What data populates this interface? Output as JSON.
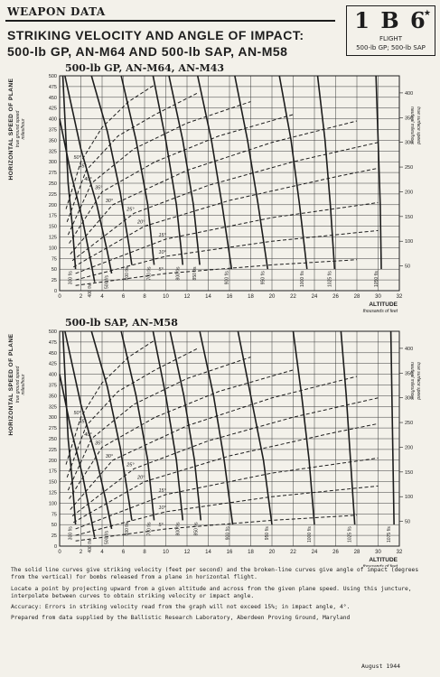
{
  "header": {
    "section_tag": "WEAPON DATA",
    "title_line1": "STRIKING VELOCITY AND ANGLE OF IMPACT:",
    "title_line2": "500-lb GP, AN-M64 AND 500-lb SAP, AN-M58"
  },
  "badge": {
    "code": "1 B 6",
    "star": "★",
    "line1": "FLIGHT",
    "line2": "500-lb GP; 500-lb SAP"
  },
  "colors": {
    "ink": "#1d1d1d",
    "paper": "#f3f1ea",
    "grid": "#3a3a3a"
  },
  "chart_data": [
    {
      "type": "line",
      "title": "500-lb GP, AN-M64, AN-M43",
      "xlabel": "ALTITUDE, thousands of feet",
      "ylabel_left": "HORIZONTAL SPEED OF PLANE, true ground speed, miles/hour",
      "ylabel_right": "true surface speed, nautical miles/hour",
      "xlim": [
        0,
        32
      ],
      "ylim": [
        0,
        500
      ],
      "right_ylim": [
        0,
        434.5
      ],
      "x_ticks": [
        0,
        2,
        4,
        6,
        8,
        10,
        12,
        14,
        16,
        18,
        20,
        22,
        24,
        26,
        28,
        30,
        32
      ],
      "y_ticks": [
        0,
        25,
        50,
        75,
        100,
        125,
        150,
        175,
        200,
        225,
        250,
        275,
        300,
        325,
        350,
        375,
        400,
        425,
        450,
        475,
        500
      ],
      "right_ticks": [
        50,
        100,
        150,
        200,
        250,
        300,
        350,
        400
      ],
      "grid": true,
      "velocity_series": [
        {
          "name": "300 f/s",
          "x": [
            0.3,
            0.8,
            1.2,
            1.5
          ],
          "y": [
            500,
            250,
            150,
            50
          ]
        },
        {
          "name": "400 f/s",
          "x": [
            0,
            1,
            2.2,
            3,
            3.3
          ],
          "y": [
            400,
            280,
            160,
            60,
            20
          ]
        },
        {
          "name": "500 f/s",
          "x": [
            0.5,
            2,
            3.5,
            4.5,
            4.9
          ],
          "y": [
            500,
            330,
            200,
            90,
            40
          ]
        },
        {
          "name": "600 f/s",
          "x": [
            3,
            4.5,
            5.7,
            6.5,
            6.8
          ],
          "y": [
            500,
            370,
            230,
            110,
            60
          ]
        },
        {
          "name": "700 f/s",
          "x": [
            5.8,
            7.2,
            8.3,
            8.9
          ],
          "y": [
            500,
            350,
            200,
            60
          ]
        },
        {
          "name": "800 f/s",
          "x": [
            8.8,
            10,
            11,
            11.6
          ],
          "y": [
            500,
            350,
            200,
            60
          ]
        },
        {
          "name": "850 f/s",
          "x": [
            10.3,
            11.6,
            12.6,
            13.2
          ],
          "y": [
            500,
            350,
            200,
            60
          ]
        },
        {
          "name": "900 f/s",
          "x": [
            13,
            14.3,
            15.3,
            16.2
          ],
          "y": [
            500,
            350,
            200,
            50
          ]
        },
        {
          "name": "950 f/s",
          "x": [
            16.5,
            17.7,
            18.7,
            19.6
          ],
          "y": [
            500,
            350,
            200,
            50
          ]
        },
        {
          "name": "1000 f/s",
          "x": [
            20.7,
            21.8,
            22.6,
            23.3
          ],
          "y": [
            500,
            350,
            200,
            50
          ]
        },
        {
          "name": "1025 f/s",
          "x": [
            24.3,
            25,
            25.5,
            25.9
          ],
          "y": [
            500,
            350,
            200,
            50
          ]
        },
        {
          "name": "1050 f/s",
          "x": [
            29.8,
            30,
            30.2,
            30.3
          ],
          "y": [
            500,
            350,
            200,
            50
          ]
        }
      ],
      "angle_series": [
        {
          "name": "5°",
          "x": [
            1.5,
            10,
            20,
            28
          ],
          "y": [
            12,
            40,
            60,
            72
          ]
        },
        {
          "name": "10°",
          "x": [
            1.5,
            10,
            20,
            30
          ],
          "y": [
            25,
            80,
            115,
            140
          ]
        },
        {
          "name": "15°",
          "x": [
            1.5,
            10,
            20,
            30
          ],
          "y": [
            40,
            120,
            170,
            205
          ]
        },
        {
          "name": "20°",
          "x": [
            1.3,
            8,
            16,
            26,
            30
          ],
          "y": [
            55,
            150,
            210,
            265,
            285
          ]
        },
        {
          "name": "25°",
          "x": [
            1.2,
            7,
            14,
            22,
            30
          ],
          "y": [
            70,
            180,
            245,
            300,
            345
          ]
        },
        {
          "name": "30°",
          "x": [
            1,
            5,
            12,
            20,
            28
          ],
          "y": [
            85,
            200,
            280,
            345,
            395
          ]
        },
        {
          "name": "35°",
          "x": [
            0.9,
            4,
            9,
            15,
            22
          ],
          "y": [
            110,
            230,
            300,
            360,
            410
          ]
        },
        {
          "name": "40°",
          "x": [
            0.8,
            3,
            7,
            12,
            18
          ],
          "y": [
            130,
            250,
            330,
            390,
            440
          ]
        },
        {
          "name": "45°",
          "x": [
            0.7,
            2.5,
            5.5,
            9,
            13
          ],
          "y": [
            160,
            280,
            360,
            410,
            460
          ]
        },
        {
          "name": "50°",
          "x": [
            0.6,
            2,
            4,
            6.5,
            9
          ],
          "y": [
            190,
            300,
            380,
            440,
            480
          ]
        }
      ]
    },
    {
      "type": "line",
      "title": "500-lb SAP, AN-M58",
      "xlabel": "ALTITUDE, thousands of feet",
      "ylabel_left": "HORIZONTAL SPEED OF PLANE, true ground speed, miles/hour",
      "ylabel_right": "true surface speed, nautical miles/hour",
      "xlim": [
        0,
        32
      ],
      "ylim": [
        0,
        500
      ],
      "right_ylim": [
        0,
        434.5
      ],
      "x_ticks": [
        0,
        2,
        4,
        6,
        8,
        10,
        12,
        14,
        16,
        18,
        20,
        22,
        24,
        26,
        28,
        30,
        32
      ],
      "y_ticks": [
        0,
        25,
        50,
        75,
        100,
        125,
        150,
        175,
        200,
        225,
        250,
        275,
        300,
        325,
        350,
        375,
        400,
        425,
        450,
        475,
        500
      ],
      "right_ticks": [
        50,
        100,
        150,
        200,
        250,
        300,
        350,
        400
      ],
      "grid": true,
      "velocity_series": [
        {
          "name": "300 f/s",
          "x": [
            0.3,
            0.8,
            1.2,
            1.5
          ],
          "y": [
            500,
            250,
            150,
            50
          ]
        },
        {
          "name": "400 f/s",
          "x": [
            0,
            1,
            2.2,
            3,
            3.3
          ],
          "y": [
            400,
            280,
            160,
            60,
            20
          ]
        },
        {
          "name": "500 f/s",
          "x": [
            0.5,
            2,
            3.5,
            4.5,
            4.9
          ],
          "y": [
            500,
            330,
            200,
            90,
            40
          ]
        },
        {
          "name": "600 f/s",
          "x": [
            3,
            4.5,
            5.7,
            6.5,
            6.8
          ],
          "y": [
            500,
            370,
            230,
            110,
            60
          ]
        },
        {
          "name": "700 f/s",
          "x": [
            5.8,
            7.2,
            8.3,
            8.9
          ],
          "y": [
            500,
            350,
            200,
            60
          ]
        },
        {
          "name": "800 f/s",
          "x": [
            8.8,
            10,
            11,
            11.6
          ],
          "y": [
            500,
            350,
            200,
            60
          ]
        },
        {
          "name": "850 f/s",
          "x": [
            10.4,
            11.7,
            12.7,
            13.3
          ],
          "y": [
            500,
            350,
            200,
            60
          ]
        },
        {
          "name": "900 f/s",
          "x": [
            13.2,
            14.5,
            15.5,
            16.3
          ],
          "y": [
            500,
            350,
            200,
            50
          ]
        },
        {
          "name": "950 f/s",
          "x": [
            16.8,
            18,
            19.2,
            20
          ],
          "y": [
            500,
            350,
            200,
            50
          ]
        },
        {
          "name": "1000 f/s",
          "x": [
            22,
            22.8,
            23.5,
            24
          ],
          "y": [
            500,
            350,
            200,
            50
          ]
        },
        {
          "name": "1025 f/s",
          "x": [
            26.5,
            27,
            27.4,
            27.8
          ],
          "y": [
            500,
            350,
            200,
            50
          ]
        },
        {
          "name": "1075 f/s",
          "x": [
            31.2,
            31.3,
            31.4,
            31.5
          ],
          "y": [
            500,
            350,
            200,
            50
          ]
        }
      ],
      "angle_series": [
        {
          "name": "5°",
          "x": [
            1.5,
            10,
            20,
            28
          ],
          "y": [
            12,
            40,
            60,
            72
          ]
        },
        {
          "name": "10°",
          "x": [
            1.5,
            10,
            20,
            30
          ],
          "y": [
            25,
            80,
            115,
            140
          ]
        },
        {
          "name": "15°",
          "x": [
            1.5,
            10,
            20,
            30
          ],
          "y": [
            40,
            120,
            170,
            205
          ]
        },
        {
          "name": "20°",
          "x": [
            1.3,
            8,
            16,
            26,
            30
          ],
          "y": [
            55,
            150,
            210,
            265,
            285
          ]
        },
        {
          "name": "25°",
          "x": [
            1.2,
            7,
            14,
            22,
            30
          ],
          "y": [
            70,
            180,
            245,
            300,
            345
          ]
        },
        {
          "name": "30°",
          "x": [
            1,
            5,
            12,
            20,
            28
          ],
          "y": [
            85,
            200,
            280,
            345,
            395
          ]
        },
        {
          "name": "35°",
          "x": [
            0.9,
            4,
            9,
            15,
            22
          ],
          "y": [
            110,
            230,
            300,
            360,
            410
          ]
        },
        {
          "name": "40°",
          "x": [
            0.8,
            3,
            7,
            12,
            18
          ],
          "y": [
            130,
            250,
            330,
            390,
            440
          ]
        },
        {
          "name": "45°",
          "x": [
            0.7,
            2.5,
            5.5,
            9,
            13
          ],
          "y": [
            160,
            280,
            360,
            410,
            460
          ]
        },
        {
          "name": "50°",
          "x": [
            0.6,
            2,
            4,
            6.5,
            9
          ],
          "y": [
            190,
            300,
            380,
            440,
            480
          ]
        }
      ]
    }
  ],
  "notes": {
    "p1": "The solid line curves give striking velocity (feet per second) and the broken-line curves give angle of impact (degrees from the vertical) for bombs released from a plane in horizontal flight.",
    "p2": "Locate a point by projecting upward from a given altitude and across from the given plane speed. Using this juncture, interpolate between curves to obtain striking velocity or impact angle.",
    "p3": "Accuracy: Errors in striking velocity read from the graph will not exceed 15%; in impact angle, 4°.",
    "p4": "Prepared from data supplied by the Ballistic Research Laboratory, Aberdeen Proving Ground, Maryland",
    "date": "August 1944"
  }
}
